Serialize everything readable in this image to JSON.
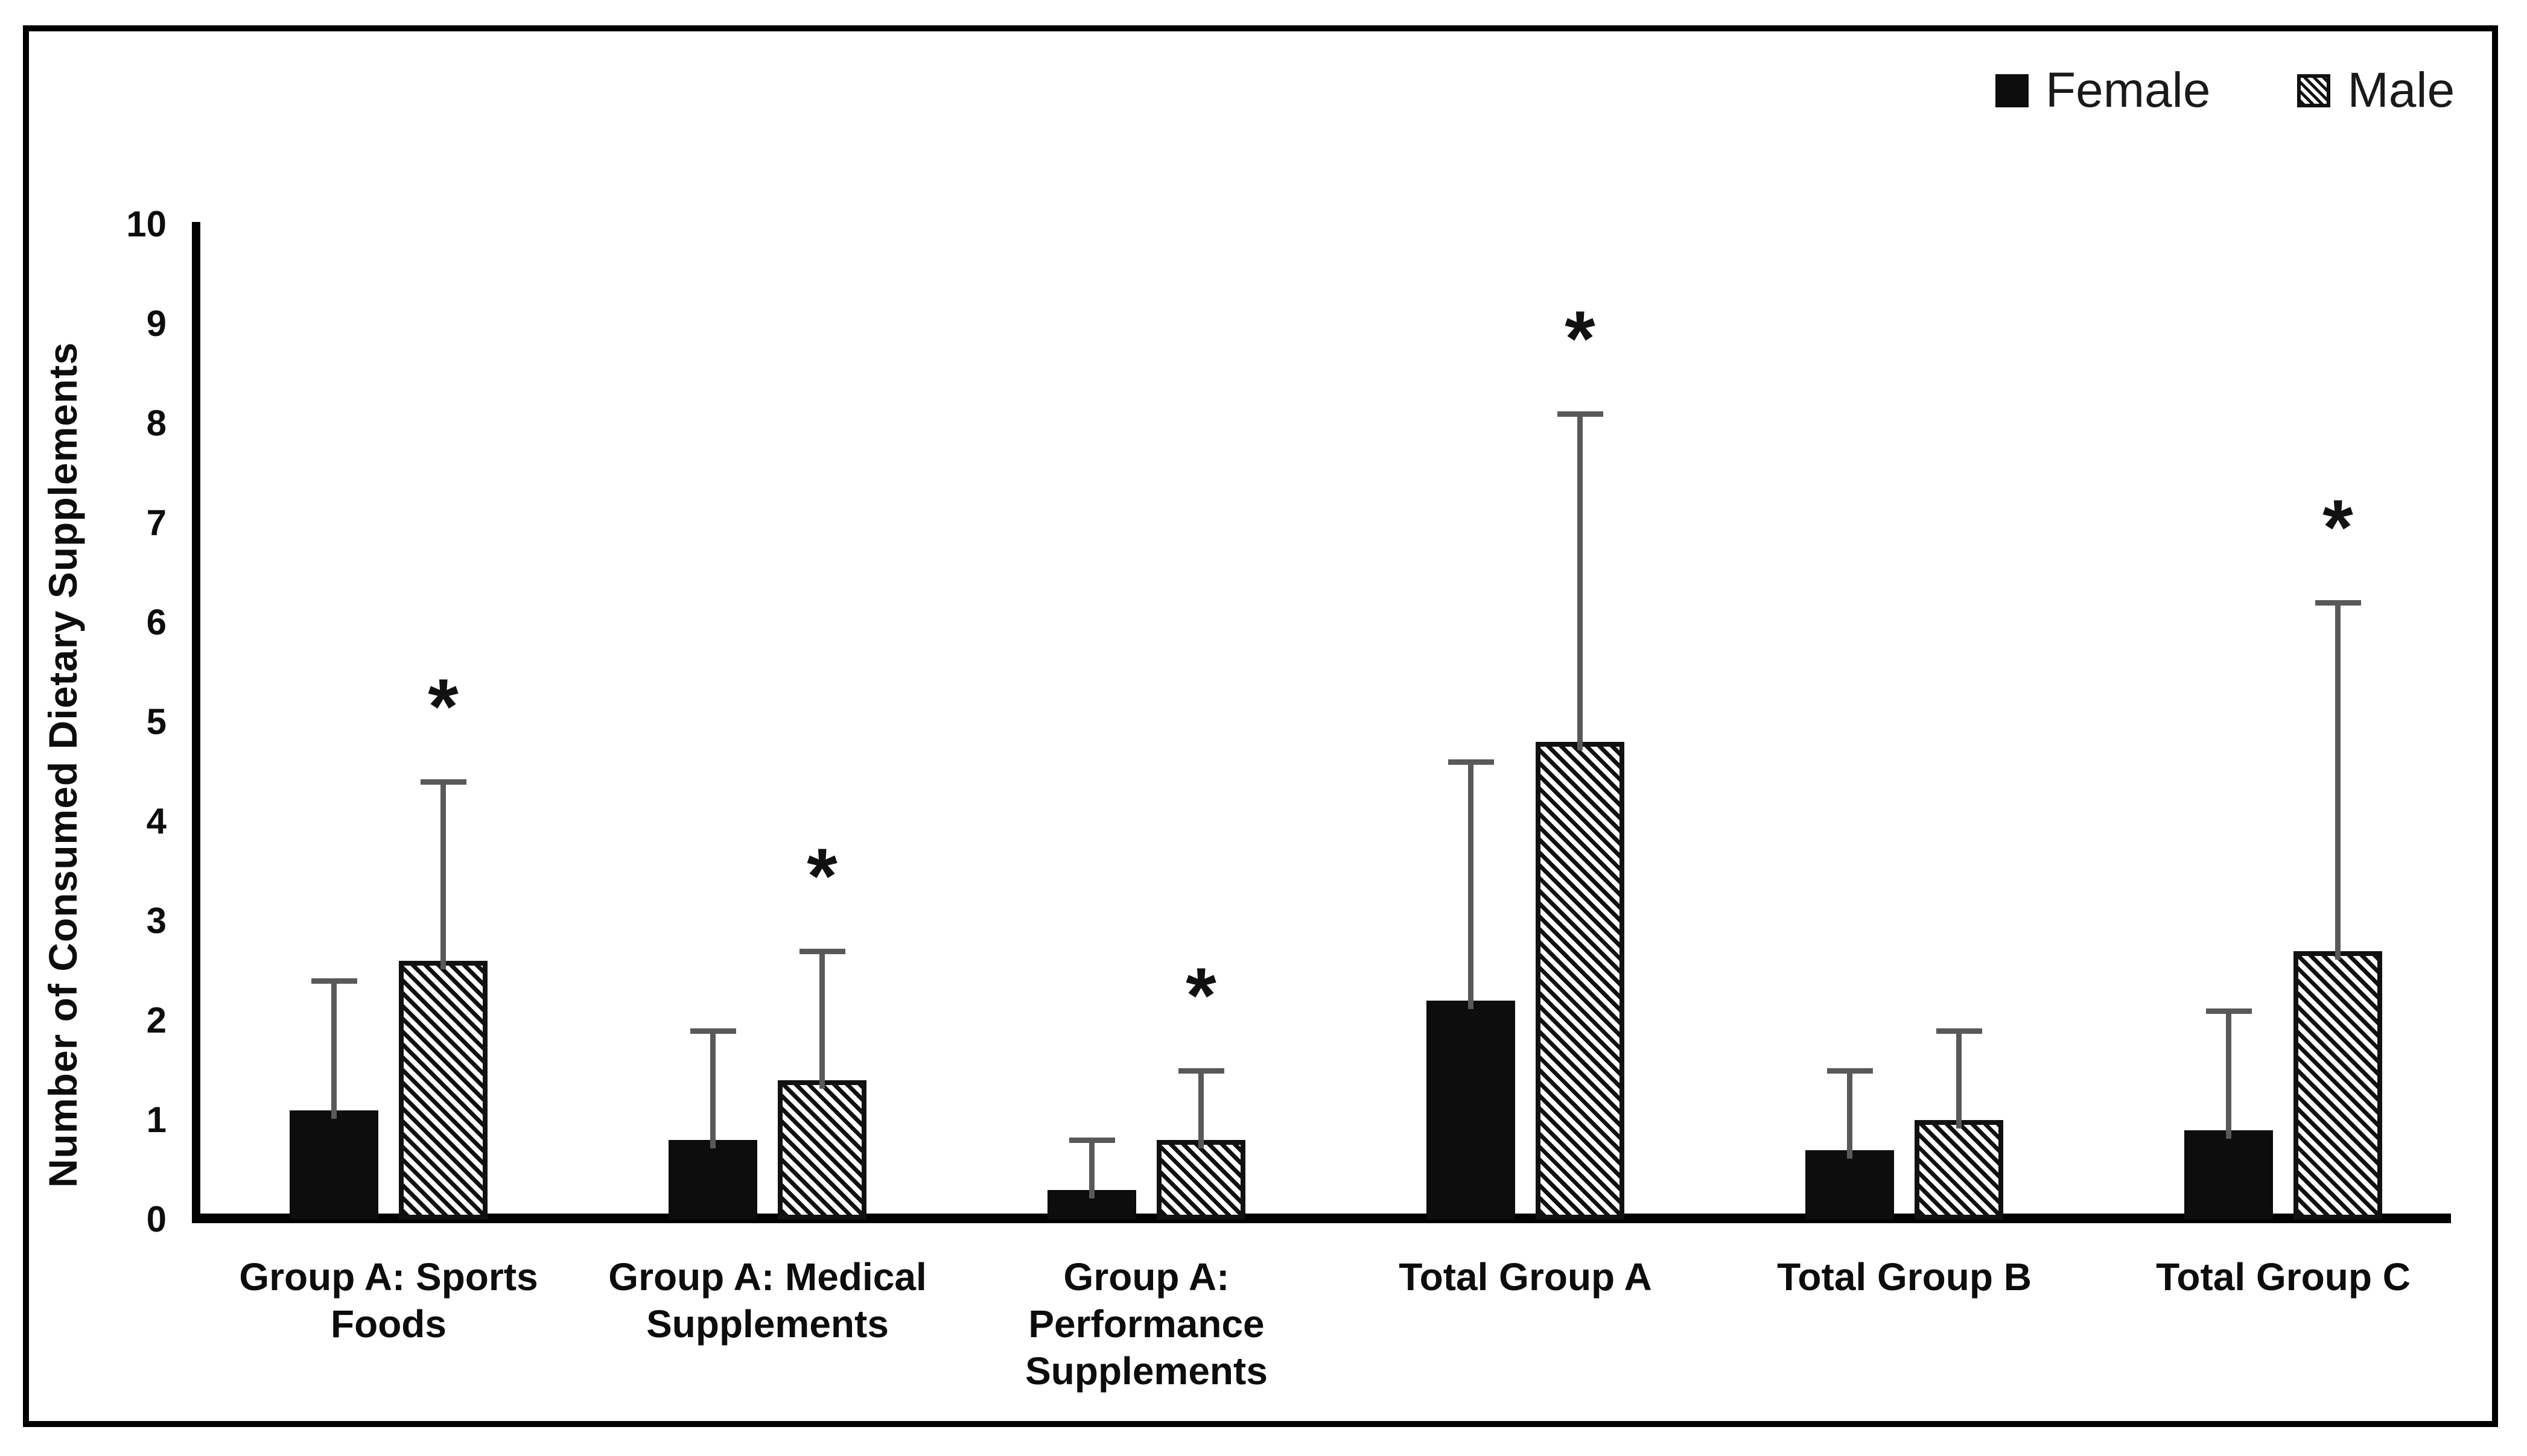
{
  "figure": {
    "background": "#ffffff",
    "frame_color": "#000000",
    "bar_color": "#0d0d0d",
    "error_bar_color": "#595959"
  },
  "legend": {
    "items": [
      {
        "label": "Female",
        "swatch": "solid"
      },
      {
        "label": "Male",
        "swatch": "hatched"
      }
    ]
  },
  "y_axis": {
    "title": "Number of Consumed Dietary Supplements",
    "min": 0,
    "max": 10,
    "step": 1,
    "ticks": [
      0,
      1,
      2,
      3,
      4,
      5,
      6,
      7,
      8,
      9,
      10
    ]
  },
  "chart_data": {
    "type": "bar",
    "title": "",
    "xlabel": "",
    "ylabel": "Number of Consumed Dietary Supplements",
    "ylim": [
      0,
      10
    ],
    "grid": false,
    "legend_position": "top-right",
    "significance_marker": "*",
    "categories": [
      "Group A: Sports Foods",
      "Group A: Medical Supplements",
      "Group A: Performance Supplements",
      "Total Group A",
      "Total Group B",
      "Total Group C"
    ],
    "category_label_lines": [
      [
        "Group A: Sports",
        "Foods"
      ],
      [
        "Group A: Medical",
        "Supplements"
      ],
      [
        "Group A:",
        "Performance",
        "Supplements"
      ],
      [
        "Total Group A"
      ],
      [
        "Total Group B"
      ],
      [
        "Total Group C"
      ]
    ],
    "series": [
      {
        "name": "Female",
        "pattern": "solid",
        "values": [
          1.1,
          0.8,
          0.3,
          2.2,
          0.7,
          0.9
        ],
        "error_plus": [
          1.3,
          1.1,
          0.5,
          2.4,
          0.8,
          1.2
        ],
        "significant": [
          false,
          false,
          false,
          false,
          false,
          false
        ]
      },
      {
        "name": "Male",
        "pattern": "hatched",
        "values": [
          2.6,
          1.4,
          0.8,
          4.8,
          1.0,
          2.7
        ],
        "error_plus": [
          1.8,
          1.3,
          0.7,
          3.3,
          0.9,
          3.5
        ],
        "significant": [
          true,
          true,
          true,
          true,
          false,
          true
        ]
      }
    ]
  }
}
